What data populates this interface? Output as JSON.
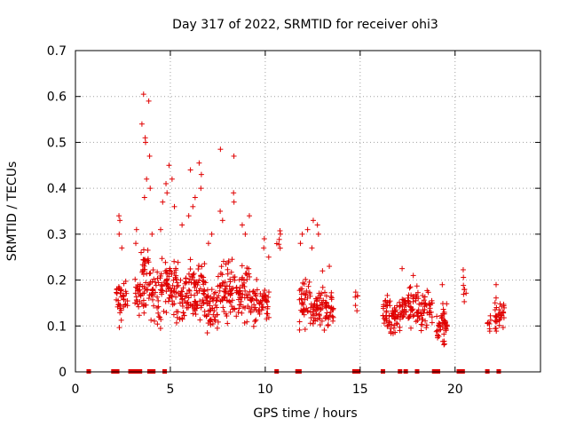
{
  "chart_data": {
    "type": "scatter",
    "title": "Day 317 of 2022, SRMTID for receiver ohi3",
    "xlabel": "GPS time / hours",
    "ylabel": "SRMTID / TECUs",
    "xlim": [
      0,
      24.5
    ],
    "ylim": [
      0,
      0.7
    ],
    "xticks": [
      0,
      5,
      10,
      15,
      20
    ],
    "yticks": [
      0,
      0.1,
      0.2,
      0.3,
      0.4,
      0.5,
      0.6,
      0.7
    ],
    "xtick_labels": [
      "0",
      "5",
      "10",
      "15",
      "20"
    ],
    "ytick_labels": [
      "0",
      "0.1",
      "0.2",
      "0.3",
      "0.4",
      "0.5",
      "0.6",
      "0.7"
    ],
    "grid": true,
    "marker": "+",
    "color": "#e00000",
    "zero_x": [
      0.7,
      2.0,
      2.2,
      2.9,
      3.1,
      3.3,
      3.4,
      3.9,
      4.1,
      4.7,
      10.6,
      11.7,
      11.8,
      14.7,
      14.9,
      16.2,
      17.1,
      17.4,
      18.0,
      18.9,
      19.1,
      20.2,
      20.4,
      21.7,
      22.3
    ],
    "clusters": [
      {
        "x0": 2.15,
        "x1": 2.45,
        "ymin": 0.08,
        "ymax": 0.24,
        "n": 25,
        "spikes": [
          0.34,
          0.33,
          0.3,
          0.27
        ]
      },
      {
        "x0": 2.5,
        "x1": 2.75,
        "ymin": 0.1,
        "ymax": 0.22,
        "n": 14,
        "spikes": []
      },
      {
        "x0": 3.1,
        "x1": 3.5,
        "ymin": 0.1,
        "ymax": 0.24,
        "n": 22,
        "spikes": [
          0.31,
          0.28,
          0.26
        ]
      },
      {
        "x0": 3.5,
        "x1": 3.95,
        "ymin": 0.09,
        "ymax": 0.32,
        "n": 40,
        "spikes": [
          0.605,
          0.59,
          0.54,
          0.51,
          0.5,
          0.47,
          0.42,
          0.4,
          0.38
        ]
      },
      {
        "x0": 3.95,
        "x1": 4.5,
        "ymin": 0.07,
        "ymax": 0.27,
        "n": 35,
        "spikes": [
          0.31,
          0.3
        ]
      },
      {
        "x0": 4.5,
        "x1": 5.2,
        "ymin": 0.1,
        "ymax": 0.28,
        "n": 50,
        "spikes": [
          0.45,
          0.42,
          0.41,
          0.39,
          0.37
        ]
      },
      {
        "x0": 5.2,
        "x1": 6.0,
        "ymin": 0.08,
        "ymax": 0.26,
        "n": 60,
        "spikes": [
          0.36,
          0.34,
          0.32
        ]
      },
      {
        "x0": 6.0,
        "x1": 6.8,
        "ymin": 0.09,
        "ymax": 0.28,
        "n": 65,
        "spikes": [
          0.455,
          0.44,
          0.43,
          0.4,
          0.38,
          0.36
        ]
      },
      {
        "x0": 6.8,
        "x1": 7.6,
        "ymin": 0.06,
        "ymax": 0.22,
        "n": 55,
        "spikes": [
          0.3,
          0.28
        ]
      },
      {
        "x0": 7.6,
        "x1": 8.4,
        "ymin": 0.08,
        "ymax": 0.28,
        "n": 60,
        "spikes": [
          0.485,
          0.47,
          0.39,
          0.37,
          0.35,
          0.33
        ]
      },
      {
        "x0": 8.4,
        "x1": 9.2,
        "ymin": 0.09,
        "ymax": 0.26,
        "n": 55,
        "spikes": [
          0.34,
          0.32,
          0.3
        ]
      },
      {
        "x0": 9.2,
        "x1": 10.2,
        "ymin": 0.08,
        "ymax": 0.22,
        "n": 60,
        "spikes": [
          0.29,
          0.27,
          0.25
        ]
      },
      {
        "x0": 10.6,
        "x1": 10.8,
        "ymin": 0.26,
        "ymax": 0.33,
        "n": 6,
        "spikes": []
      },
      {
        "x0": 11.8,
        "x1": 12.4,
        "ymin": 0.08,
        "ymax": 0.22,
        "n": 40,
        "spikes": [
          0.31,
          0.3,
          0.28
        ]
      },
      {
        "x0": 12.4,
        "x1": 12.9,
        "ymin": 0.08,
        "ymax": 0.2,
        "n": 35,
        "spikes": [
          0.33,
          0.32,
          0.3,
          0.27
        ]
      },
      {
        "x0": 12.9,
        "x1": 13.6,
        "ymin": 0.07,
        "ymax": 0.2,
        "n": 45,
        "spikes": [
          0.23,
          0.22
        ]
      },
      {
        "x0": 14.7,
        "x1": 14.9,
        "ymin": 0.11,
        "ymax": 0.2,
        "n": 6,
        "spikes": []
      },
      {
        "x0": 16.2,
        "x1": 16.6,
        "ymin": 0.06,
        "ymax": 0.19,
        "n": 30,
        "spikes": []
      },
      {
        "x0": 16.6,
        "x1": 17.2,
        "ymin": 0.06,
        "ymax": 0.17,
        "n": 40,
        "spikes": []
      },
      {
        "x0": 17.2,
        "x1": 18.0,
        "ymin": 0.08,
        "ymax": 0.2,
        "n": 55,
        "spikes": [
          0.225,
          0.21
        ]
      },
      {
        "x0": 18.0,
        "x1": 18.8,
        "ymin": 0.08,
        "ymax": 0.19,
        "n": 50,
        "spikes": []
      },
      {
        "x0": 19.0,
        "x1": 19.6,
        "ymin": 0.03,
        "ymax": 0.17,
        "n": 45,
        "spikes": [
          0.19
        ]
      },
      {
        "x0": 20.4,
        "x1": 20.6,
        "ymin": 0.13,
        "ymax": 0.24,
        "n": 8,
        "spikes": []
      },
      {
        "x0": 21.7,
        "x1": 21.9,
        "ymin": 0.07,
        "ymax": 0.14,
        "n": 8,
        "spikes": []
      },
      {
        "x0": 22.1,
        "x1": 22.6,
        "ymin": 0.07,
        "ymax": 0.18,
        "n": 35,
        "spikes": [
          0.19
        ]
      }
    ]
  }
}
